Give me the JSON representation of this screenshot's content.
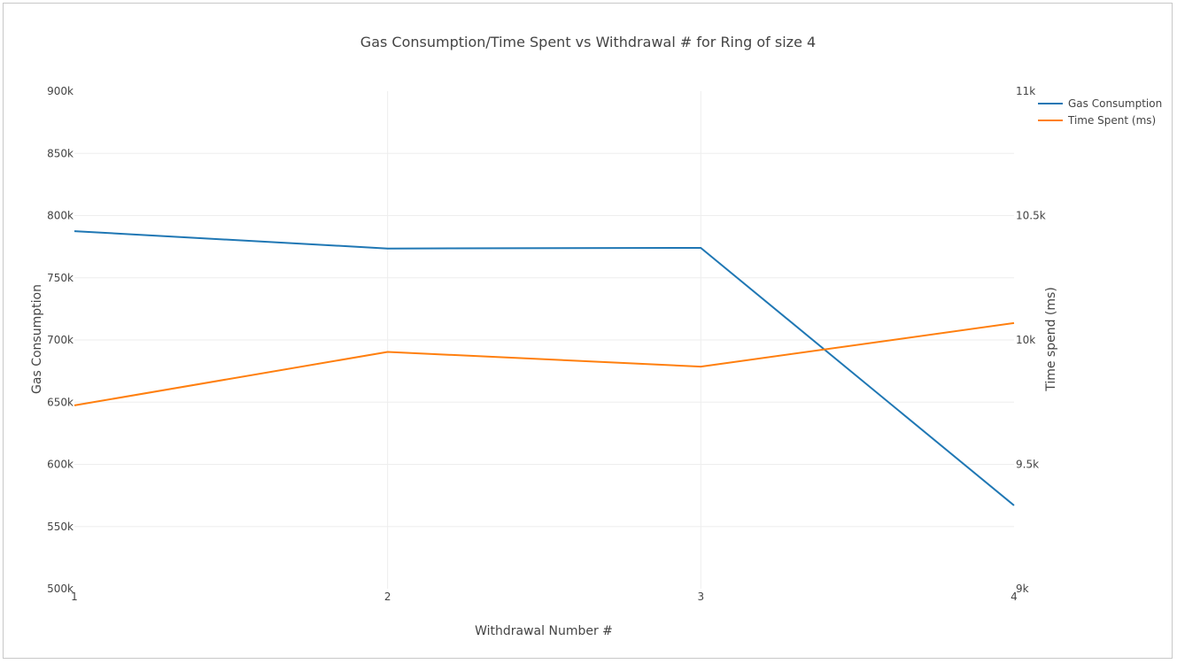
{
  "chart_data": {
    "type": "line",
    "title": "Gas Consumption/Time Spent vs Withdrawal # for Ring of size 4",
    "xlabel": "Withdrawal Number #",
    "ylabel": "Gas Consumption",
    "y2label": "Time spend (ms)",
    "x": [
      1,
      2,
      3,
      4
    ],
    "x_tick_labels": [
      "1",
      "2",
      "3",
      "4"
    ],
    "xlim": [
      1,
      4
    ],
    "ylim": [
      500000,
      900000
    ],
    "y_tick_values": [
      500000,
      550000,
      600000,
      650000,
      700000,
      750000,
      800000,
      850000,
      900000
    ],
    "y_tick_labels": [
      "500k",
      "550k",
      "600k",
      "650k",
      "700k",
      "750k",
      "800k",
      "850k",
      "900k"
    ],
    "y2lim": [
      9000,
      11000
    ],
    "y2_tick_values": [
      9000,
      9500,
      10000,
      10500,
      11000
    ],
    "y2_tick_labels": [
      "9k",
      "9.5k",
      "10k",
      "10.5k",
      "11k"
    ],
    "grid": true,
    "legend_position": "top-right",
    "series": [
      {
        "name": "Gas Consumption",
        "axis": "y",
        "color": "#1f77b4",
        "values": [
          787500,
          773500,
          774000,
          567000
        ]
      },
      {
        "name": "Time Spent (ms)",
        "axis": "y2",
        "color": "#ff7f0e",
        "values": [
          9737,
          9952,
          9893,
          10068
        ]
      }
    ]
  }
}
